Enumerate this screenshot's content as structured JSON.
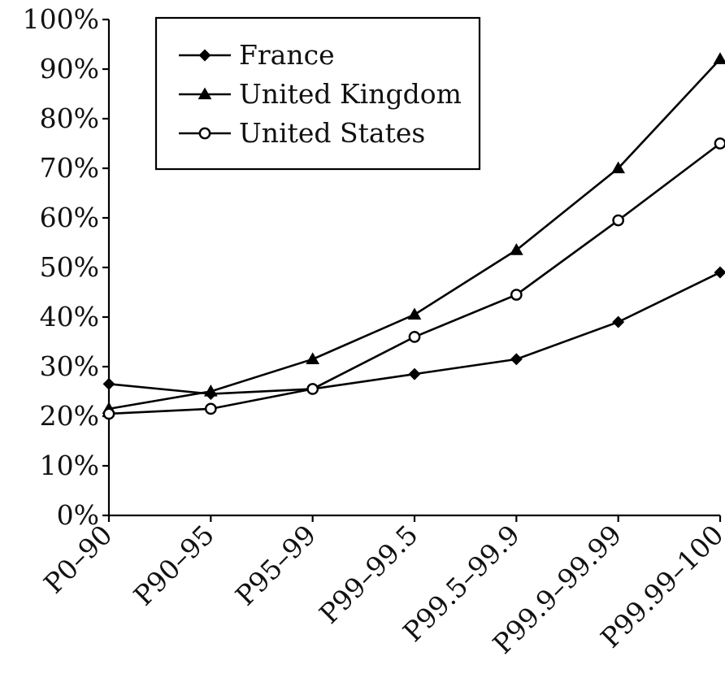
{
  "chart_data": {
    "type": "line",
    "title": "",
    "xlabel": "",
    "ylabel": "",
    "categories": [
      "P0–90",
      "P90–95",
      "P95–99",
      "P99–99.5",
      "P99.5–99.9",
      "P99.9–99.99",
      "P99.99–100"
    ],
    "ylim": [
      0,
      100
    ],
    "yticks": [
      0,
      10,
      20,
      30,
      40,
      50,
      60,
      70,
      80,
      90,
      100
    ],
    "ytick_labels": [
      "0%",
      "10%",
      "20%",
      "30%",
      "40%",
      "50%",
      "60%",
      "70%",
      "80%",
      "90%",
      "100%"
    ],
    "y_unit": "%",
    "grid": false,
    "legend_position": "top-left",
    "series": [
      {
        "name": "France",
        "marker": "diamond-filled",
        "color": "#000000",
        "values": [
          26.5,
          24.5,
          25.5,
          28.5,
          31.5,
          39,
          49
        ]
      },
      {
        "name": "United Kingdom",
        "marker": "triangle-filled",
        "color": "#000000",
        "values": [
          21.5,
          25,
          31.5,
          40.5,
          53.5,
          70,
          92
        ]
      },
      {
        "name": "United States",
        "marker": "circle-open",
        "color": "#000000",
        "values": [
          20.5,
          21.5,
          25.5,
          36,
          44.5,
          59.5,
          75
        ]
      }
    ]
  }
}
